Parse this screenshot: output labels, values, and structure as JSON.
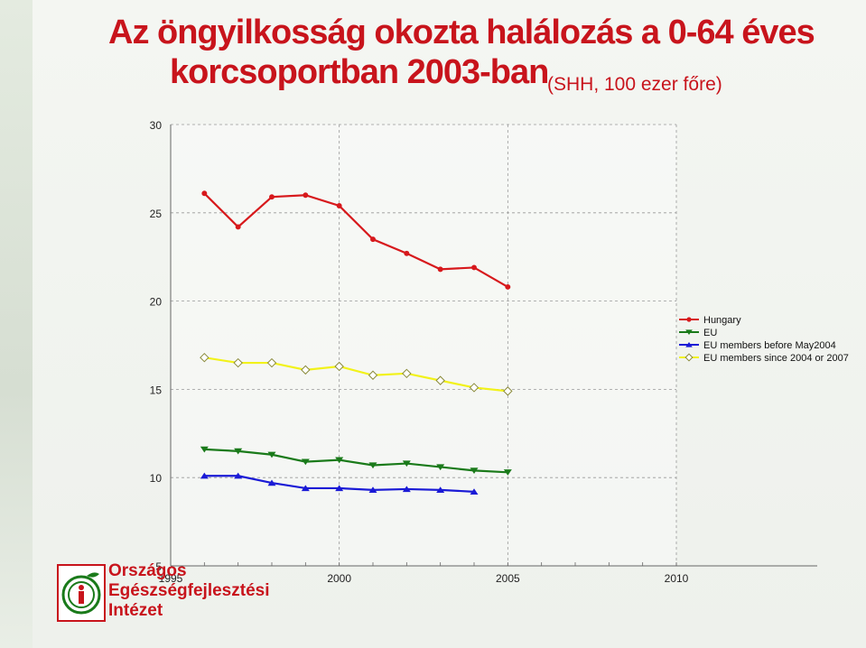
{
  "title_line1": "Az öngyilkosság okozta halálozás a 0-64 éves",
  "title_line2": "korcsoportban 2003-ban",
  "subtitle": "(SHH, 100 ezer főre)",
  "logo": {
    "line1": "Országos",
    "line2": "Egészségfejlesztési",
    "line3": "Intézet"
  },
  "chart_data": {
    "type": "line",
    "xlim": [
      1995,
      2010
    ],
    "ylim": [
      5,
      30
    ],
    "x_ticks": [
      1995,
      2000,
      2005,
      2010
    ],
    "y_ticks": [
      5,
      10,
      15,
      20,
      25,
      30
    ],
    "grid": true,
    "legend_position": "right",
    "series": [
      {
        "name": "Hungary",
        "color": "#d7191c",
        "marker": "circle",
        "x": [
          1996,
          1997,
          1998,
          1999,
          2000,
          2001,
          2002,
          2003,
          2004,
          2005
        ],
        "y": [
          26.1,
          24.2,
          25.9,
          26.0,
          25.4,
          23.5,
          22.7,
          21.8,
          21.9,
          20.8
        ]
      },
      {
        "name": "EU",
        "color": "#1a7a1a",
        "marker": "triangle-down",
        "x": [
          1996,
          1997,
          1998,
          1999,
          2000,
          2001,
          2002,
          2003,
          2004,
          2005
        ],
        "y": [
          11.6,
          11.5,
          11.3,
          10.9,
          11.0,
          10.7,
          10.8,
          10.6,
          10.4,
          10.3
        ]
      },
      {
        "name": "EU members before May2004",
        "color": "#1a1ad6",
        "marker": "triangle-up",
        "x": [
          1996,
          1997,
          1998,
          1999,
          2000,
          2001,
          2002,
          2003,
          2004
        ],
        "y": [
          10.1,
          10.1,
          9.7,
          9.4,
          9.4,
          9.3,
          9.35,
          9.3,
          9.2
        ]
      },
      {
        "name": "EU members since 2004 or 2007",
        "color": "#f2f21a",
        "marker": "diamond",
        "x": [
          1996,
          1997,
          1998,
          1999,
          2000,
          2001,
          2002,
          2003,
          2004,
          2005
        ],
        "y": [
          16.8,
          16.5,
          16.5,
          16.1,
          16.3,
          15.8,
          15.9,
          15.5,
          15.1,
          14.9
        ]
      }
    ]
  }
}
